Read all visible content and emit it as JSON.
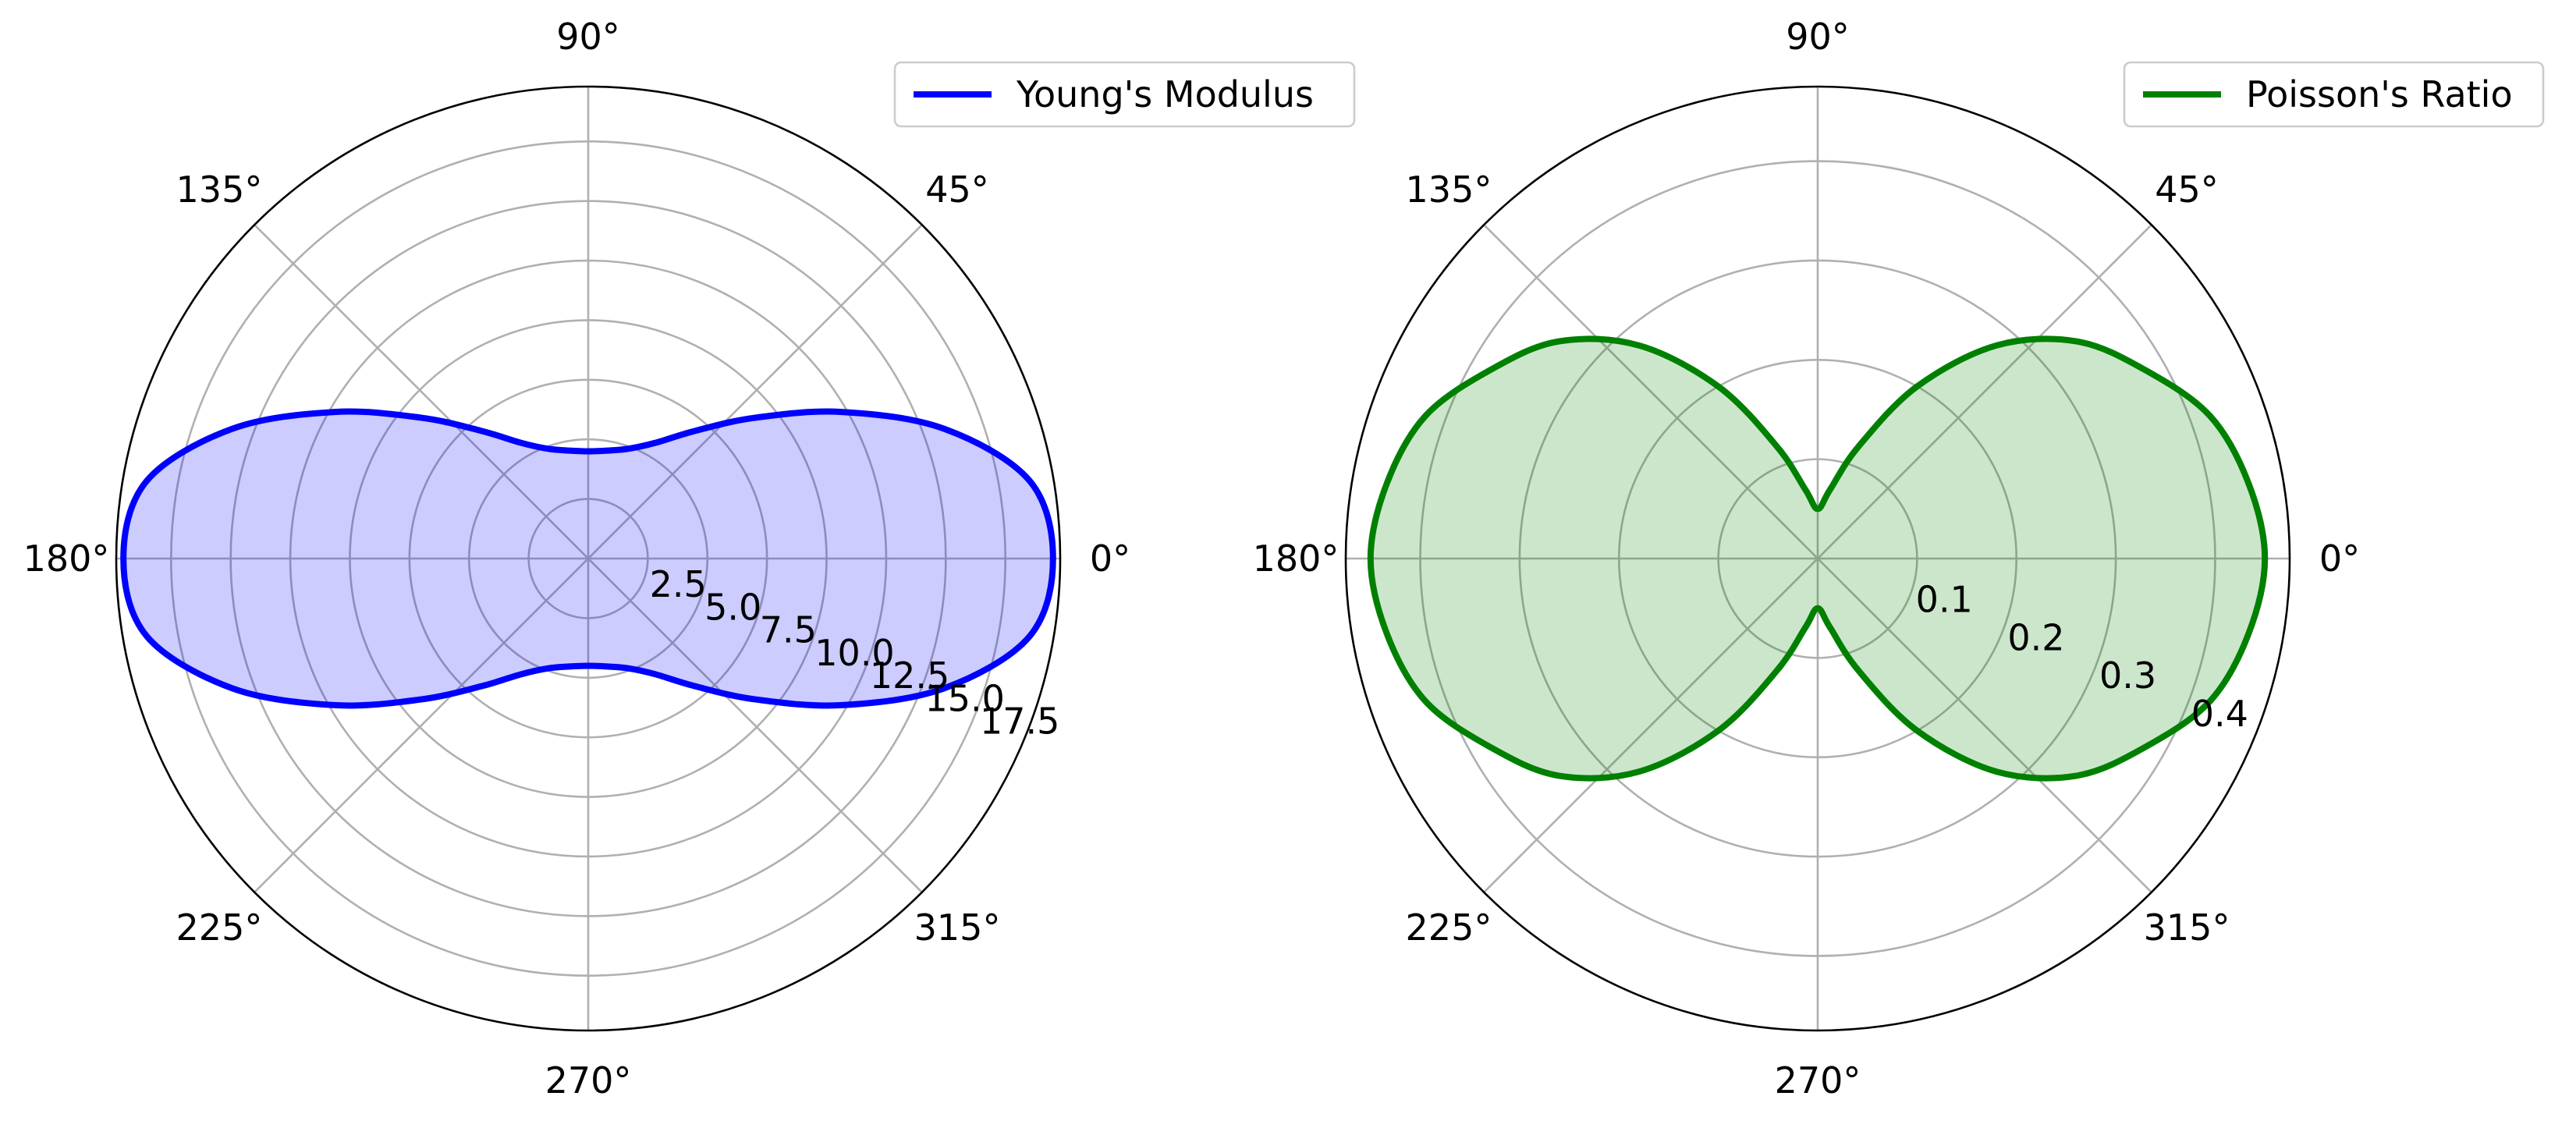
{
  "colors": {
    "grid": "#b0b0b0",
    "frame": "#000000",
    "young": "#0000ff",
    "young_fill": "#0000ff",
    "poisson": "#008000",
    "poisson_fill": "#008000"
  },
  "chart_data": [
    {
      "type": "polar",
      "angle_ticks": [
        "0°",
        "45°",
        "90°",
        "135°",
        "180°",
        "225°",
        "270°",
        "315°"
      ],
      "radial_ticks": [
        "2.5",
        "5.0",
        "7.5",
        "10.0",
        "12.5",
        "15.0",
        "17.5"
      ],
      "radial_tick_values": [
        2.5,
        5.0,
        7.5,
        10.0,
        12.5,
        15.0,
        17.5
      ],
      "rlim": [
        0,
        19.8
      ],
      "grid": true,
      "legend": "top-right",
      "series": [
        {
          "name": "Young's Modulus",
          "color": "#0000ff",
          "fill": true,
          "theta_deg": [
            0,
            10,
            20,
            30,
            40,
            50,
            60,
            70,
            80,
            90,
            100,
            110,
            120,
            130,
            140,
            150,
            160,
            170,
            180,
            190,
            200,
            210,
            220,
            230,
            240,
            250,
            260,
            270,
            280,
            290,
            300,
            310,
            320,
            330,
            340,
            350,
            360
          ],
          "r": [
            19.5,
            18.8,
            15.9,
            12.3,
            9.2,
            7.0,
            5.6,
            4.9,
            4.6,
            4.5,
            4.6,
            4.9,
            5.6,
            7.0,
            9.2,
            12.3,
            15.9,
            18.8,
            19.5,
            18.8,
            15.9,
            12.3,
            9.2,
            7.0,
            5.6,
            4.9,
            4.6,
            4.5,
            4.6,
            4.9,
            5.6,
            7.0,
            9.2,
            12.3,
            15.9,
            18.8,
            19.5
          ]
        }
      ]
    },
    {
      "type": "polar",
      "angle_ticks": [
        "0°",
        "45°",
        "90°",
        "135°",
        "180°",
        "225°",
        "270°",
        "315°"
      ],
      "radial_ticks": [
        "0.1",
        "0.2",
        "0.3",
        "0.4"
      ],
      "radial_tick_values": [
        0.1,
        0.2,
        0.3,
        0.4
      ],
      "rlim": [
        0,
        0.475
      ],
      "grid": true,
      "legend": "top-right",
      "series": [
        {
          "name": "Poisson's Ratio",
          "color": "#008000",
          "fill": true,
          "theta_deg": [
            0,
            10,
            20,
            30,
            40,
            50,
            60,
            70,
            80,
            90,
            100,
            110,
            120,
            130,
            140,
            150,
            160,
            170,
            180,
            190,
            200,
            210,
            220,
            230,
            240,
            250,
            260,
            270,
            280,
            290,
            300,
            310,
            320,
            330,
            340,
            350,
            360
          ],
          "r": [
            0.45,
            0.44,
            0.42,
            0.38,
            0.34,
            0.28,
            0.2,
            0.12,
            0.07,
            0.05,
            0.07,
            0.12,
            0.2,
            0.28,
            0.34,
            0.38,
            0.42,
            0.44,
            0.45,
            0.44,
            0.42,
            0.38,
            0.34,
            0.28,
            0.2,
            0.12,
            0.07,
            0.05,
            0.07,
            0.12,
            0.2,
            0.28,
            0.34,
            0.38,
            0.42,
            0.44,
            0.45
          ]
        }
      ]
    }
  ]
}
